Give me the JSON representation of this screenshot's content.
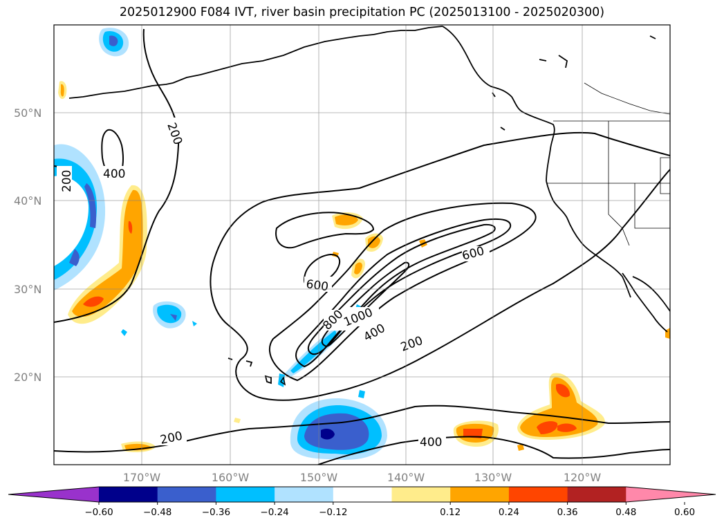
{
  "title": "2025012900 F084 IVT, river basin precipitation PC (2025013100 - 2025020300)",
  "latitude_labels": [
    "50°N",
    "40°N",
    "30°N",
    "20°N"
  ],
  "longitude_labels": [
    "170°W",
    "160°W",
    "150°W",
    "140°W",
    "130°W",
    "120°W"
  ],
  "ivt_contour_labels": [
    "200",
    "200",
    "400",
    "600",
    "600",
    "800",
    "1000",
    "400",
    "200",
    "200",
    "400"
  ],
  "colorbar": {
    "tick_labels": [
      "−0.60",
      "−0.48",
      "−0.36",
      "−0.24",
      "−0.12",
      "0.12",
      "0.24",
      "0.36",
      "0.48",
      "0.60"
    ],
    "colors": [
      "#9932cc",
      "#00008b",
      "#3a5fcd",
      "#00bfff",
      "#b0e2ff",
      "#ffffff",
      "#ffec8b",
      "#ffa500",
      "#ff4500",
      "#b22222",
      "#ff88aa"
    ]
  }
}
